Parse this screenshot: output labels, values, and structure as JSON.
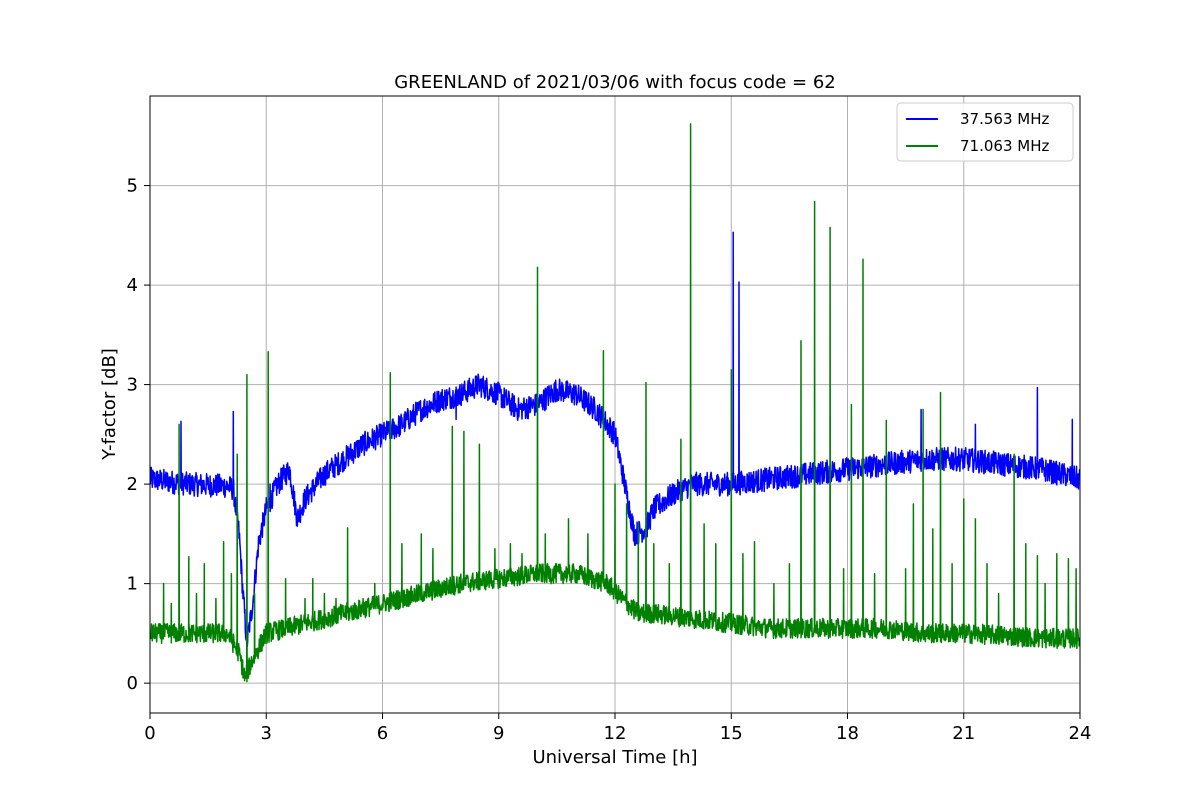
{
  "chart_data": {
    "type": "line",
    "title": "GREENLAND of 2021/03/06 with focus code = 62",
    "xlabel": "Universal Time [h]",
    "ylabel": "Y-factor [dB]",
    "xlim": [
      0,
      24
    ],
    "ylim": [
      -0.3,
      5.9
    ],
    "xticks": [
      0,
      3,
      6,
      9,
      12,
      15,
      18,
      21,
      24
    ],
    "yticks": [
      0,
      1,
      2,
      3,
      4,
      5
    ],
    "grid": true,
    "legend_position": "top-right",
    "series": [
      {
        "name": "37.563 MHz",
        "color": "#0000ff",
        "noise_amplitude": 0.12,
        "baseline": [
          [
            0,
            2.05
          ],
          [
            1,
            2.0
          ],
          [
            2,
            1.98
          ],
          [
            2.15,
            1.95
          ],
          [
            2.3,
            1.5
          ],
          [
            2.4,
            0.9
          ],
          [
            2.5,
            0.4
          ],
          [
            2.65,
            0.8
          ],
          [
            2.8,
            1.4
          ],
          [
            3.0,
            1.75
          ],
          [
            3.3,
            2.0
          ],
          [
            3.6,
            2.15
          ],
          [
            3.8,
            1.65
          ],
          [
            4.0,
            1.85
          ],
          [
            4.5,
            2.1
          ],
          [
            5,
            2.25
          ],
          [
            5.5,
            2.4
          ],
          [
            6,
            2.5
          ],
          [
            6.5,
            2.6
          ],
          [
            7,
            2.75
          ],
          [
            7.5,
            2.85
          ],
          [
            8,
            2.9
          ],
          [
            8.5,
            3.0
          ],
          [
            9,
            2.9
          ],
          [
            9.5,
            2.75
          ],
          [
            10,
            2.8
          ],
          [
            10.5,
            2.95
          ],
          [
            11,
            2.9
          ],
          [
            11.5,
            2.75
          ],
          [
            12,
            2.5
          ],
          [
            12.3,
            1.9
          ],
          [
            12.5,
            1.5
          ],
          [
            12.8,
            1.55
          ],
          [
            13,
            1.75
          ],
          [
            13.5,
            1.9
          ],
          [
            14,
            2.0
          ],
          [
            15,
            2.0
          ],
          [
            16,
            2.05
          ],
          [
            17,
            2.1
          ],
          [
            18,
            2.15
          ],
          [
            19,
            2.2
          ],
          [
            20,
            2.25
          ],
          [
            21,
            2.25
          ],
          [
            22,
            2.2
          ],
          [
            23,
            2.15
          ],
          [
            24,
            2.05
          ]
        ],
        "spikes": [
          [
            0.8,
            2.63
          ],
          [
            2.15,
            2.73
          ],
          [
            3.1,
            2.0
          ],
          [
            7.9,
            2.65
          ],
          [
            10.0,
            2.9
          ],
          [
            15.05,
            4.53
          ],
          [
            15.2,
            4.03
          ],
          [
            19.9,
            2.75
          ],
          [
            21.3,
            2.6
          ],
          [
            22.9,
            2.97
          ],
          [
            23.8,
            2.65
          ]
        ]
      },
      {
        "name": "71.063 MHz",
        "color": "#008000",
        "noise_amplitude": 0.1,
        "baseline": [
          [
            0,
            0.5
          ],
          [
            1,
            0.5
          ],
          [
            2,
            0.5
          ],
          [
            2.3,
            0.3
          ],
          [
            2.45,
            0.05
          ],
          [
            2.6,
            0.2
          ],
          [
            3.0,
            0.5
          ],
          [
            4,
            0.6
          ],
          [
            5,
            0.7
          ],
          [
            6,
            0.8
          ],
          [
            7,
            0.9
          ],
          [
            8,
            1.0
          ],
          [
            9,
            1.05
          ],
          [
            10,
            1.1
          ],
          [
            11,
            1.1
          ],
          [
            11.8,
            1.0
          ],
          [
            12.3,
            0.8
          ],
          [
            12.6,
            0.7
          ],
          [
            13,
            0.7
          ],
          [
            14,
            0.65
          ],
          [
            15,
            0.6
          ],
          [
            16,
            0.55
          ],
          [
            17,
            0.55
          ],
          [
            18,
            0.55
          ],
          [
            19,
            0.55
          ],
          [
            20,
            0.5
          ],
          [
            21,
            0.5
          ],
          [
            22,
            0.48
          ],
          [
            23,
            0.45
          ],
          [
            24,
            0.45
          ]
        ],
        "spikes": [
          [
            0.35,
            1.0
          ],
          [
            0.55,
            0.8
          ],
          [
            0.75,
            2.6
          ],
          [
            1.0,
            1.27
          ],
          [
            1.2,
            0.9
          ],
          [
            1.4,
            1.2
          ],
          [
            1.7,
            0.85
          ],
          [
            1.9,
            1.42
          ],
          [
            2.1,
            1.1
          ],
          [
            2.25,
            2.3
          ],
          [
            2.5,
            3.1
          ],
          [
            2.7,
            0.9
          ],
          [
            3.05,
            3.33
          ],
          [
            3.5,
            1.05
          ],
          [
            4.0,
            0.85
          ],
          [
            4.2,
            1.05
          ],
          [
            4.5,
            0.9
          ],
          [
            4.8,
            0.85
          ],
          [
            5.1,
            1.56
          ],
          [
            5.5,
            0.85
          ],
          [
            5.8,
            1.0
          ],
          [
            6.2,
            3.12
          ],
          [
            6.5,
            1.4
          ],
          [
            7.0,
            1.5
          ],
          [
            7.3,
            1.35
          ],
          [
            7.8,
            2.58
          ],
          [
            8.1,
            2.53
          ],
          [
            8.5,
            2.4
          ],
          [
            8.9,
            1.35
          ],
          [
            9.3,
            1.4
          ],
          [
            9.6,
            1.3
          ],
          [
            10.0,
            4.18
          ],
          [
            10.2,
            1.5
          ],
          [
            10.8,
            1.65
          ],
          [
            11.3,
            1.5
          ],
          [
            11.7,
            3.34
          ],
          [
            12.0,
            2.0
          ],
          [
            12.3,
            1.8
          ],
          [
            12.6,
            1.6
          ],
          [
            12.8,
            3.02
          ],
          [
            13.0,
            1.4
          ],
          [
            13.4,
            1.2
          ],
          [
            13.7,
            2.45
          ],
          [
            13.95,
            5.62
          ],
          [
            14.3,
            1.6
          ],
          [
            14.6,
            1.4
          ],
          [
            15.0,
            3.15
          ],
          [
            15.3,
            1.3
          ],
          [
            15.6,
            1.42
          ],
          [
            16.1,
            1.0
          ],
          [
            16.5,
            1.2
          ],
          [
            16.8,
            3.44
          ],
          [
            17.15,
            4.84
          ],
          [
            17.55,
            4.58
          ],
          [
            17.9,
            1.15
          ],
          [
            18.1,
            2.8
          ],
          [
            18.4,
            4.26
          ],
          [
            18.7,
            1.1
          ],
          [
            19.0,
            2.64
          ],
          [
            19.5,
            1.15
          ],
          [
            19.7,
            1.8
          ],
          [
            19.95,
            2.75
          ],
          [
            20.2,
            1.55
          ],
          [
            20.4,
            2.92
          ],
          [
            20.7,
            1.2
          ],
          [
            21.0,
            1.85
          ],
          [
            21.3,
            1.65
          ],
          [
            21.6,
            1.2
          ],
          [
            21.9,
            0.9
          ],
          [
            22.3,
            2.3
          ],
          [
            22.6,
            1.4
          ],
          [
            22.9,
            1.28
          ],
          [
            23.1,
            1.0
          ],
          [
            23.4,
            1.3
          ],
          [
            23.7,
            1.25
          ],
          [
            23.9,
            1.15
          ]
        ]
      }
    ]
  }
}
